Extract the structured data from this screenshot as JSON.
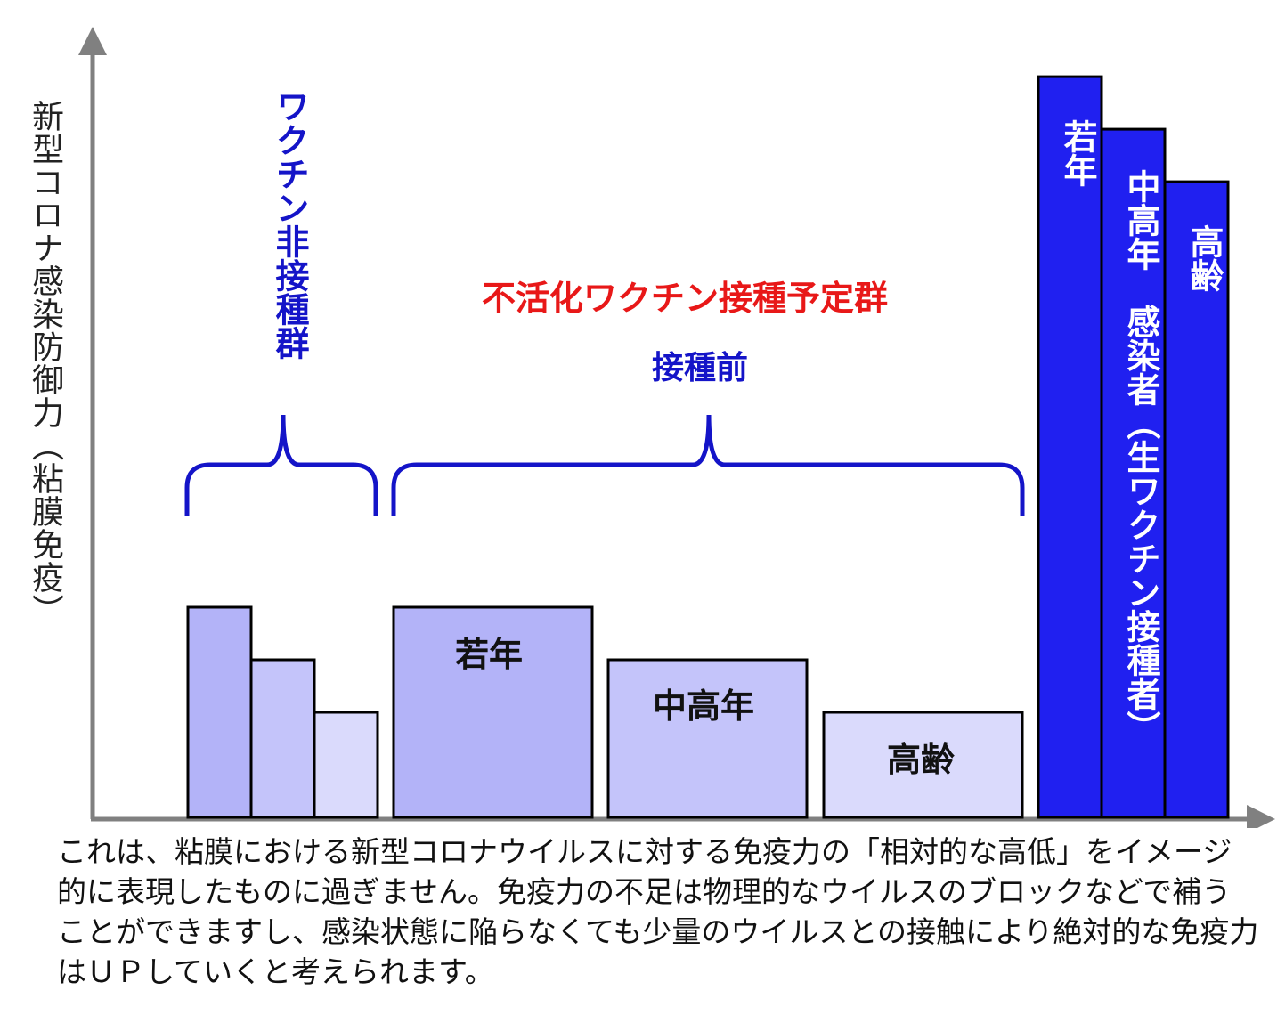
{
  "chart_data": {
    "type": "bar",
    "ylabel": "新型コロナ感染防御力（粘膜免疫）",
    "groups": [
      {
        "name": "ワクチン非接種群",
        "categories": [
          "",
          "",
          ""
        ],
        "values": [
          40,
          30,
          20
        ],
        "colors": [
          "#b3b3f8",
          "#c4c4fa",
          "#dadafc"
        ]
      },
      {
        "name": "不活化ワクチン接種予定群",
        "subtitle": "接種前",
        "categories": [
          "若年",
          "中高年",
          "高齢"
        ],
        "values": [
          40,
          30,
          20
        ],
        "colors": [
          "#b3b3f8",
          "#c4c4fa",
          "#dadafc"
        ]
      },
      {
        "name": "感染者（生ワクチン接種者）",
        "categories": [
          "若年",
          "中高年",
          "高齢"
        ],
        "values": [
          141,
          131,
          121
        ],
        "colors": [
          "#2020f0",
          "#2020f0",
          "#2020f0"
        ]
      }
    ]
  },
  "labels": {
    "ylabel": "新型コロナ感染防御力（粘膜免疫）",
    "unvaccinated_group": "ワクチン非接種群",
    "planned_group": "不活化ワクチン接種予定群",
    "planned_sub": "接種前",
    "young": "若年",
    "middle": "中高年",
    "elderly": "高齢",
    "infected_young": "若年",
    "infected_middle": "中高年　感染者（生ワクチン接種者）",
    "infected_elderly": "高齢"
  },
  "caption": "これは、粘膜における新型コロナウイルスに対する免疫力の「相対的な高低」をイメージ的に表現したものに過ぎません。免疫力の不足は物理的なウイルスのブロックなどで補うことができますし、感染状態に陥らなくても少量のウイルスとの接触により絶対的な免疫力はＵＰしていくと考えられます。",
  "colors": {
    "axis": "#808080",
    "bracket": "#1414c8",
    "red": "#e81818",
    "blue": "#1414c8",
    "bright_bar": "#2020f0"
  }
}
